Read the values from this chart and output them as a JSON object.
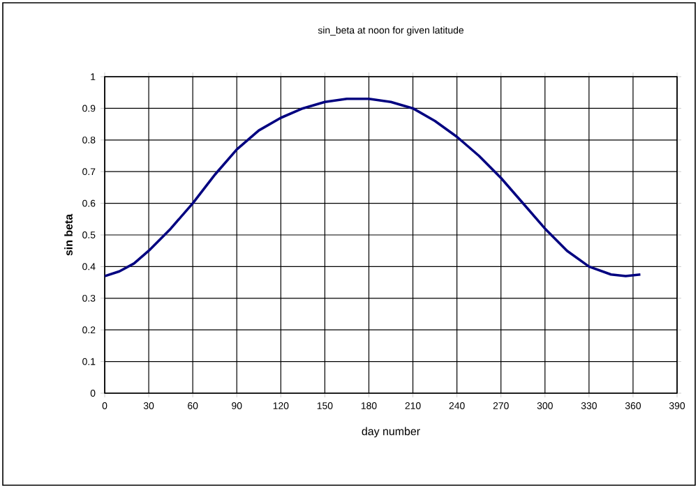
{
  "chart_data": {
    "type": "line",
    "title": "sin_beta at noon for given latitude",
    "xlabel": "day number",
    "ylabel": "sin beta",
    "xlim": [
      0,
      390
    ],
    "xticks": [
      0,
      30,
      60,
      90,
      120,
      150,
      180,
      210,
      240,
      270,
      300,
      330,
      360,
      390
    ],
    "ylim": [
      0,
      1
    ],
    "yticks": [
      0,
      0.1,
      0.2,
      0.3,
      0.4,
      0.5,
      0.6,
      0.7,
      0.8,
      0.9,
      1
    ],
    "grid": true,
    "marker": "none",
    "line_style": "solid",
    "series": [
      {
        "color": "#000080",
        "x": [
          0,
          10,
          20,
          30,
          45,
          60,
          75,
          90,
          105,
          120,
          135,
          150,
          165,
          180,
          195,
          210,
          225,
          240,
          255,
          270,
          285,
          300,
          315,
          330,
          345,
          355,
          365
        ],
        "values": [
          0.37,
          0.385,
          0.41,
          0.45,
          0.52,
          0.6,
          0.69,
          0.77,
          0.83,
          0.87,
          0.9,
          0.92,
          0.93,
          0.93,
          0.92,
          0.9,
          0.86,
          0.81,
          0.75,
          0.68,
          0.6,
          0.52,
          0.45,
          0.4,
          0.375,
          0.37,
          0.375
        ]
      }
    ]
  }
}
